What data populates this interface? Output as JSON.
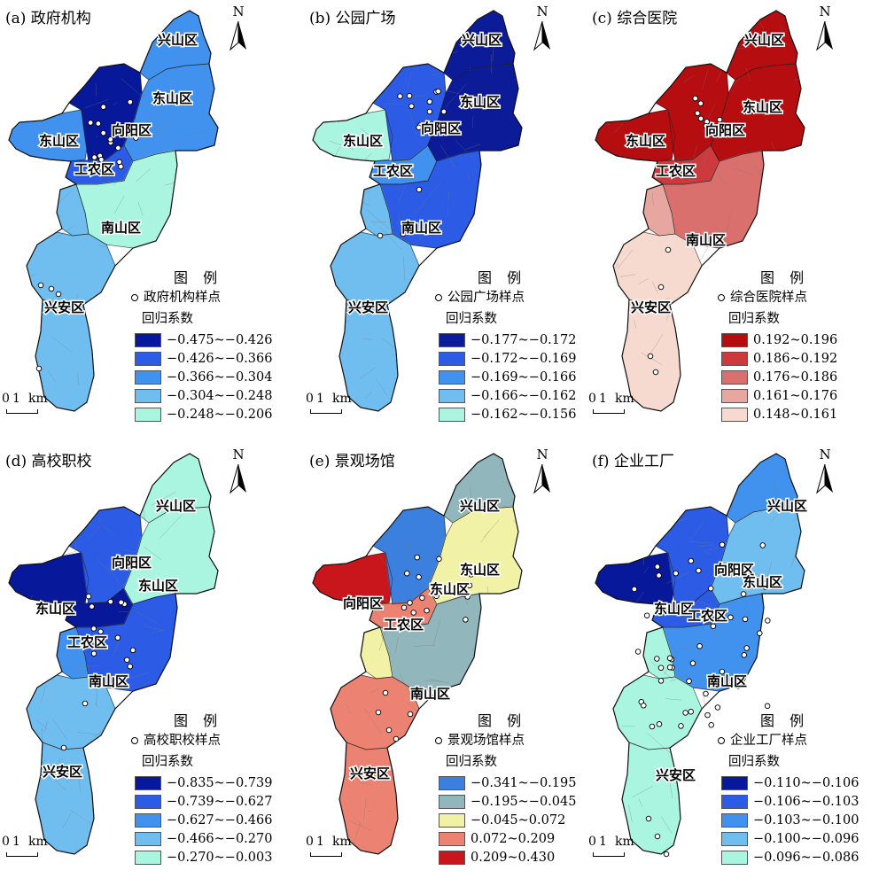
{
  "north_label": "N",
  "legend_title": "图 例",
  "coef_label": "回归系数",
  "scale": {
    "zero": "0",
    "one": "1",
    "unit": "km"
  },
  "panels": [
    {
      "title": "(a) 政府机构",
      "sample_label": "政府机构样点",
      "ranges": [
        "−0.475~−0.426",
        "−0.426~−0.366",
        "−0.366~−0.304",
        "−0.304~−0.248",
        "−0.248~−0.206"
      ],
      "colors": [
        "#08189a",
        "#2c5ce6",
        "#4192ee",
        "#70bdf0",
        "#a9f5df"
      ],
      "region_class": {
        "west": 2,
        "northcore": 0,
        "gongnong": 1,
        "xingshan": 2,
        "dongshan": 2,
        "nanshan": 4,
        "nanshan_w": 3,
        "xingan": 3,
        "south": 3
      },
      "labels": [
        "兴山区",
        "东山区",
        "东山区",
        "向阳区",
        "工农区",
        "南山区",
        "兴安区"
      ]
    },
    {
      "title": "(b) 公园广场",
      "sample_label": "公园广场样点",
      "ranges": [
        "−0.177~−0.172",
        "−0.172~−0.169",
        "−0.169~−0.166",
        "−0.166~−0.162",
        "−0.162~−0.156"
      ],
      "colors": [
        "#0c1c99",
        "#2c5ce6",
        "#4192ee",
        "#70bdf0",
        "#a9f5df"
      ],
      "region_class": {
        "west": 4,
        "northcore": 1,
        "gongnong": 2,
        "xingshan": 0,
        "dongshan": 0,
        "nanshan": 1,
        "nanshan_w": 3,
        "xingan": 3,
        "south": 3
      },
      "labels": [
        "兴山区",
        "东山区",
        "东山区",
        "向阳区",
        "工农区",
        "南山区",
        "兴安区"
      ]
    },
    {
      "title": "(c) 综合医院",
      "sample_label": "综合医院样点",
      "ranges": [
        "0.192~0.196",
        "0.186~0.192",
        "0.176~0.186",
        "0.161~0.176",
        "0.148~0.161"
      ],
      "colors": [
        "#b50d10",
        "#cc3a3d",
        "#d9706e",
        "#e8a6a0",
        "#f6d9cf"
      ],
      "region_class": {
        "west": 0,
        "northcore": 0,
        "gongnong": 1,
        "xingshan": 0,
        "dongshan": 0,
        "nanshan": 2,
        "nanshan_w": 3,
        "xingan": 4,
        "south": 4
      },
      "labels": [
        "兴山区",
        "东山区",
        "东山区",
        "向阳区",
        "工农区",
        "南山区",
        "兴安区"
      ]
    },
    {
      "title": "(d) 高校职校",
      "sample_label": "高校职校样点",
      "ranges": [
        "−0.835~−0.739",
        "−0.739~−0.627",
        "−0.627~−0.466",
        "−0.466~−0.270",
        "−0.270~−0.003"
      ],
      "colors": [
        "#08189a",
        "#2c5ce6",
        "#4192ee",
        "#70bdf0",
        "#a9f5df"
      ],
      "region_class": {
        "west": 0,
        "northcore": 1,
        "gongnong": 0,
        "xingshan": 4,
        "dongshan": 4,
        "nanshan": 1,
        "nanshan_w": 2,
        "xingan": 3,
        "south": 3
      },
      "labels": [
        "兴山区",
        "向阳区",
        "东山区",
        "东山区",
        "工农区",
        "南山区",
        "兴安区"
      ]
    },
    {
      "title": "(e) 景观场馆",
      "sample_label": "景观场馆样点",
      "ranges": [
        "−0.341~−0.195",
        "−0.195~−0.045",
        "−0.045~0.072",
        "0.072~0.209",
        "0.209~0.430"
      ],
      "colors": [
        "#3b80df",
        "#91b6bc",
        "#f2f2a6",
        "#ec8372",
        "#c8161c"
      ],
      "region_class": {
        "west": 4,
        "northcore": 0,
        "gongnong": 3,
        "xingshan": 1,
        "dongshan": 2,
        "nanshan": 1,
        "nanshan_w": 2,
        "xingan": 3,
        "south": 3
      },
      "labels": [
        "兴山区",
        "东山区",
        "向阳区",
        "东山区",
        "工农区",
        "南山区",
        "兴安区"
      ]
    },
    {
      "title": "(f) 企业工厂",
      "sample_label": "企业工厂样点",
      "ranges": [
        "−0.110~−0.106",
        "−0.106~−0.103",
        "−0.103~−0.100",
        "−0.100~−0.096",
        "−0.096~−0.086"
      ],
      "colors": [
        "#08189a",
        "#2c5ce6",
        "#4192ee",
        "#70bdf0",
        "#a9f5df"
      ],
      "region_class": {
        "west": 0,
        "northcore": 1,
        "gongnong": 1,
        "xingshan": 2,
        "dongshan": 3,
        "nanshan": 2,
        "nanshan_w": 4,
        "xingan": 4,
        "south": 4
      },
      "labels": [
        "兴山区",
        "向阳区",
        "东山区",
        "东山区",
        "工农区",
        "南山区",
        "兴安区"
      ]
    }
  ]
}
